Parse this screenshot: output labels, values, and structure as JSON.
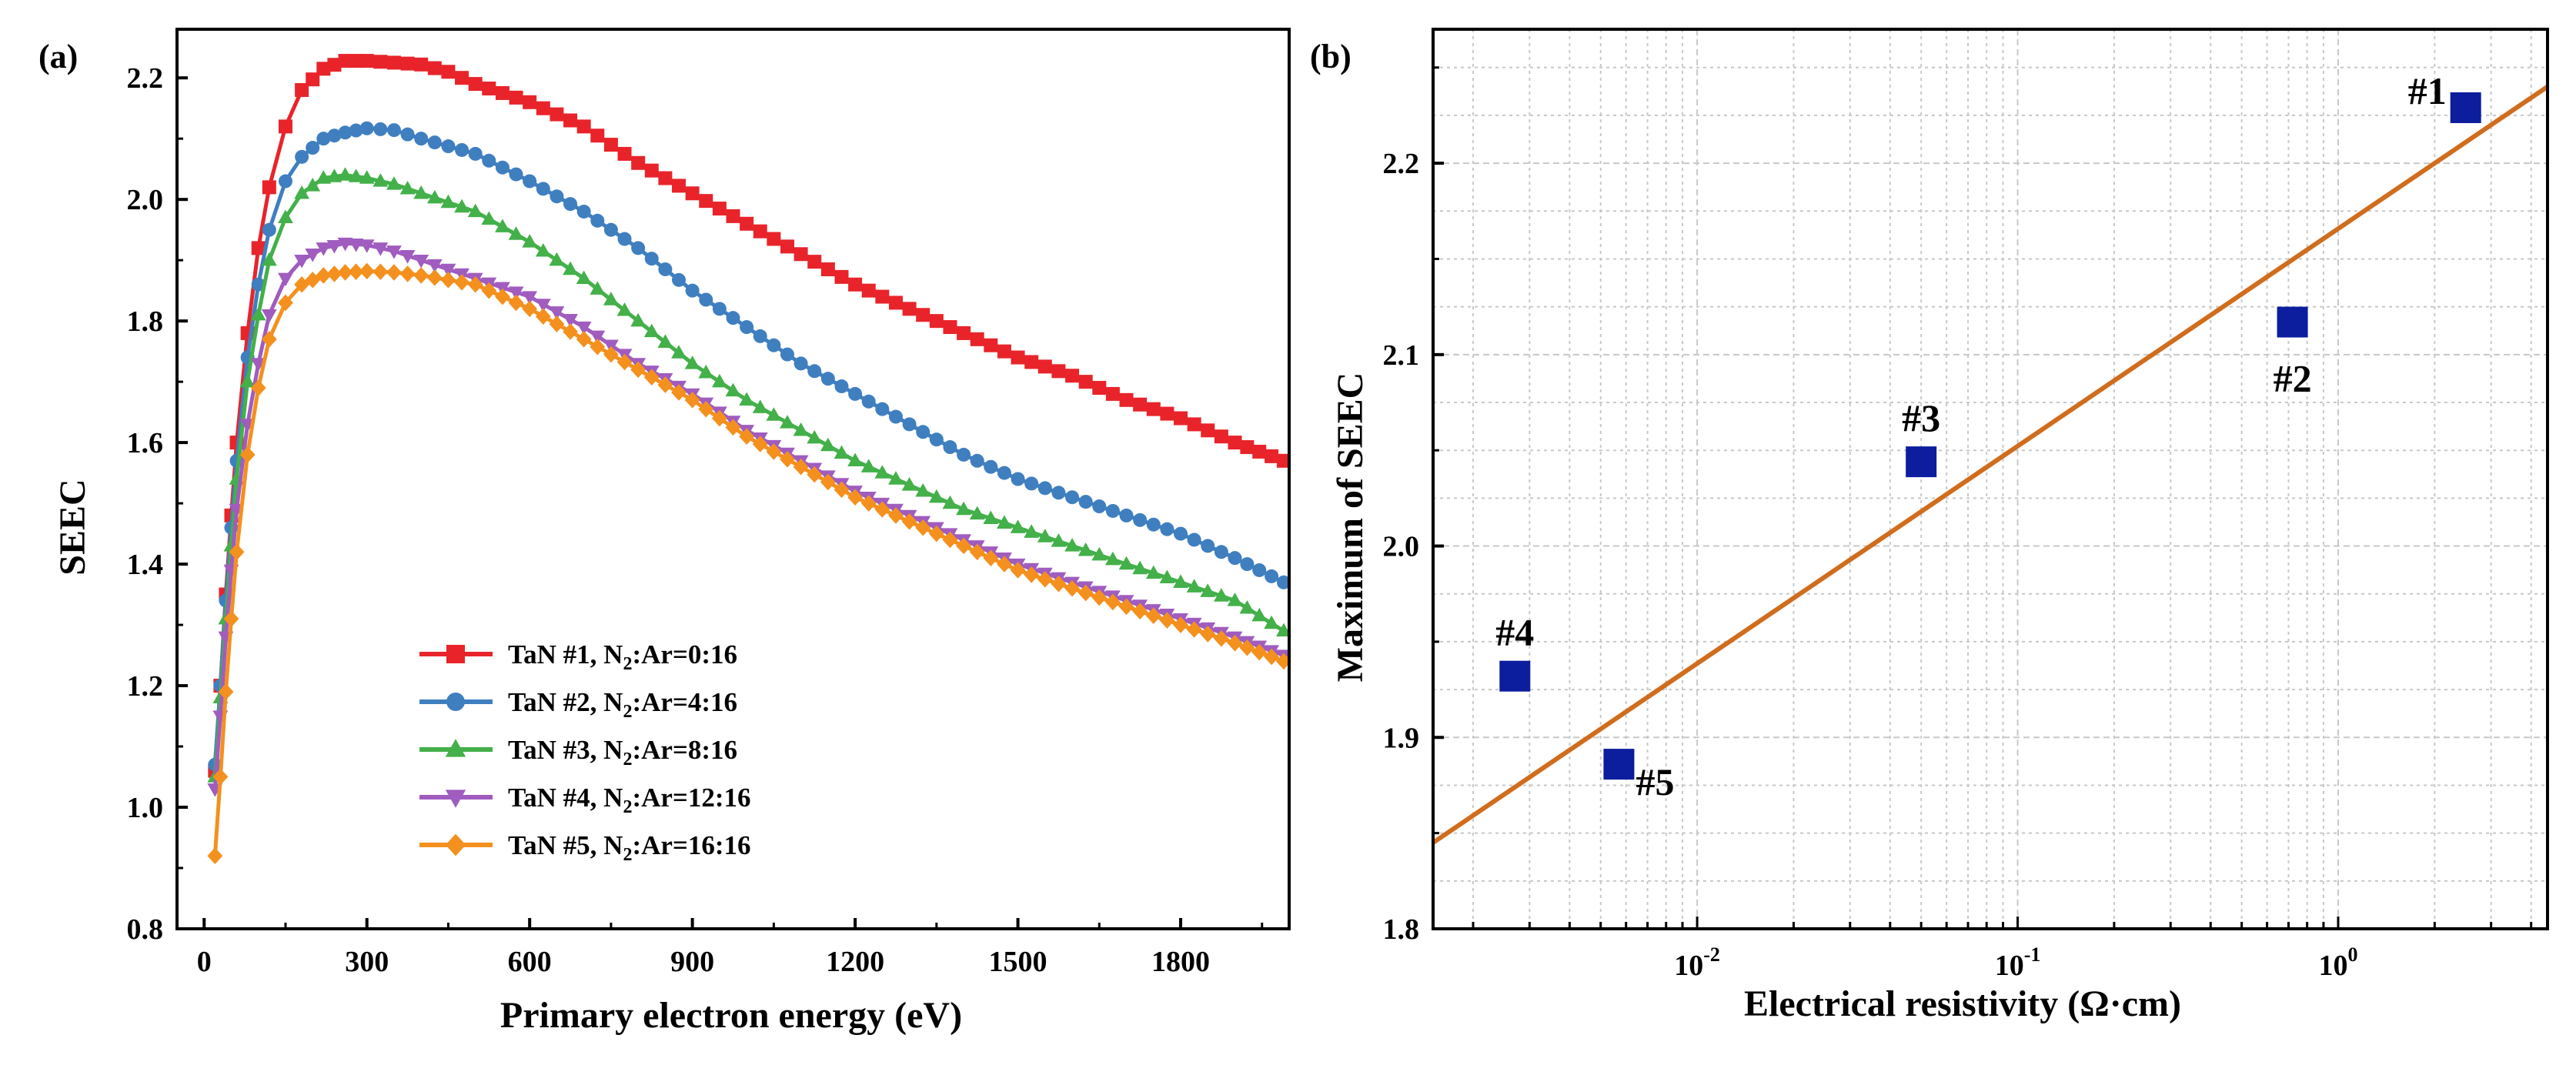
{
  "chart_data": [
    {
      "panel_label": "(a)",
      "type": "line",
      "xlabel": "Primary electron energy (eV)",
      "ylabel": "SEEC",
      "xlim": [
        -50,
        2000
      ],
      "ylim": [
        0.8,
        2.28
      ],
      "xticks": [
        "0",
        "300",
        "600",
        "900",
        "1200",
        "1500",
        "1800"
      ],
      "yticks": [
        "0.8",
        "1.0",
        "1.2",
        "1.4",
        "1.6",
        "1.8",
        "2.0",
        "2.2"
      ],
      "legend_position": "bottom-center",
      "series": [
        {
          "name": "TaN #1, N",
          "sub": "2",
          "suffix": ":Ar=0:16",
          "color": "#e8242a",
          "marker": "square",
          "points": [
            [
              20,
              1.06
            ],
            [
              30,
              1.2
            ],
            [
              40,
              1.35
            ],
            [
              50,
              1.48
            ],
            [
              60,
              1.6
            ],
            [
              80,
              1.78
            ],
            [
              100,
              1.92
            ],
            [
              120,
              2.02
            ],
            [
              150,
              2.12
            ],
            [
              180,
              2.18
            ],
            [
              220,
              2.215
            ],
            [
              260,
              2.228
            ],
            [
              300,
              2.228
            ],
            [
              350,
              2.225
            ],
            [
              400,
              2.222
            ],
            [
              450,
              2.21
            ],
            [
              500,
              2.19
            ],
            [
              600,
              2.16
            ],
            [
              700,
              2.12
            ],
            [
              800,
              2.06
            ],
            [
              900,
              2.01
            ],
            [
              1000,
              1.96
            ],
            [
              1100,
              1.91
            ],
            [
              1200,
              1.86
            ],
            [
              1300,
              1.82
            ],
            [
              1400,
              1.78
            ],
            [
              1500,
              1.74
            ],
            [
              1600,
              1.71
            ],
            [
              1700,
              1.67
            ],
            [
              1800,
              1.64
            ],
            [
              1900,
              1.6
            ],
            [
              1990,
              1.57
            ]
          ]
        },
        {
          "name": "TaN #2, N",
          "sub": "2",
          "suffix": ":Ar=4:16",
          "color": "#3f7fc0",
          "marker": "circle",
          "points": [
            [
              20,
              1.07
            ],
            [
              30,
              1.2
            ],
            [
              40,
              1.34
            ],
            [
              50,
              1.46
            ],
            [
              60,
              1.57
            ],
            [
              80,
              1.74
            ],
            [
              100,
              1.86
            ],
            [
              120,
              1.95
            ],
            [
              150,
              2.03
            ],
            [
              180,
              2.07
            ],
            [
              220,
              2.1
            ],
            [
              260,
              2.11
            ],
            [
              300,
              2.117
            ],
            [
              350,
              2.114
            ],
            [
              400,
              2.1
            ],
            [
              500,
              2.075
            ],
            [
              600,
              2.03
            ],
            [
              700,
              1.98
            ],
            [
              800,
              1.92
            ],
            [
              900,
              1.85
            ],
            [
              1000,
              1.79
            ],
            [
              1100,
              1.73
            ],
            [
              1200,
              1.68
            ],
            [
              1300,
              1.63
            ],
            [
              1400,
              1.58
            ],
            [
              1500,
              1.54
            ],
            [
              1600,
              1.51
            ],
            [
              1700,
              1.48
            ],
            [
              1800,
              1.45
            ],
            [
              1900,
              1.41
            ],
            [
              1990,
              1.37
            ]
          ]
        },
        {
          "name": "TaN #3, N",
          "sub": "2",
          "suffix": ":Ar=8:16",
          "color": "#43b049",
          "marker": "triangle-up",
          "points": [
            [
              20,
              1.05
            ],
            [
              30,
              1.18
            ],
            [
              40,
              1.31
            ],
            [
              50,
              1.43
            ],
            [
              60,
              1.54
            ],
            [
              80,
              1.7
            ],
            [
              100,
              1.81
            ],
            [
              120,
              1.9
            ],
            [
              150,
              1.97
            ],
            [
              180,
              2.01
            ],
            [
              220,
              2.035
            ],
            [
              260,
              2.04
            ],
            [
              300,
              2.035
            ],
            [
              350,
              2.025
            ],
            [
              400,
              2.01
            ],
            [
              500,
              1.98
            ],
            [
              600,
              1.93
            ],
            [
              700,
              1.87
            ],
            [
              800,
              1.8
            ],
            [
              900,
              1.73
            ],
            [
              1000,
              1.67
            ],
            [
              1100,
              1.62
            ],
            [
              1200,
              1.57
            ],
            [
              1300,
              1.53
            ],
            [
              1400,
              1.49
            ],
            [
              1500,
              1.46
            ],
            [
              1600,
              1.43
            ],
            [
              1700,
              1.4
            ],
            [
              1800,
              1.37
            ],
            [
              1900,
              1.34
            ],
            [
              1990,
              1.29
            ]
          ]
        },
        {
          "name": "TaN #4, N",
          "sub": "2",
          "suffix": ":Ar=12:16",
          "color": "#a05cbf",
          "marker": "triangle-down",
          "points": [
            [
              20,
              1.03
            ],
            [
              30,
              1.15
            ],
            [
              40,
              1.28
            ],
            [
              50,
              1.39
            ],
            [
              60,
              1.49
            ],
            [
              80,
              1.63
            ],
            [
              100,
              1.73
            ],
            [
              120,
              1.81
            ],
            [
              150,
              1.87
            ],
            [
              180,
              1.9
            ],
            [
              220,
              1.92
            ],
            [
              260,
              1.928
            ],
            [
              300,
              1.925
            ],
            [
              350,
              1.915
            ],
            [
              400,
              1.9
            ],
            [
              500,
              1.87
            ],
            [
              600,
              1.84
            ],
            [
              700,
              1.79
            ],
            [
              800,
              1.73
            ],
            [
              900,
              1.68
            ],
            [
              1000,
              1.62
            ],
            [
              1100,
              1.57
            ],
            [
              1200,
              1.52
            ],
            [
              1300,
              1.48
            ],
            [
              1400,
              1.44
            ],
            [
              1500,
              1.4
            ],
            [
              1600,
              1.37
            ],
            [
              1700,
              1.34
            ],
            [
              1800,
              1.31
            ],
            [
              1900,
              1.28
            ],
            [
              1990,
              1.25
            ]
          ]
        },
        {
          "name": "TaN #5, N",
          "sub": "2",
          "suffix": ":Ar=16:16",
          "color": "#f4901e",
          "marker": "diamond",
          "points": [
            [
              20,
              0.92
            ],
            [
              30,
              1.05
            ],
            [
              40,
              1.19
            ],
            [
              50,
              1.31
            ],
            [
              60,
              1.42
            ],
            [
              80,
              1.58
            ],
            [
              100,
              1.69
            ],
            [
              120,
              1.77
            ],
            [
              150,
              1.83
            ],
            [
              180,
              1.86
            ],
            [
              220,
              1.875
            ],
            [
              260,
              1.88
            ],
            [
              300,
              1.882
            ],
            [
              350,
              1.88
            ],
            [
              400,
              1.875
            ],
            [
              500,
              1.86
            ],
            [
              600,
              1.82
            ],
            [
              700,
              1.77
            ],
            [
              800,
              1.72
            ],
            [
              900,
              1.67
            ],
            [
              1000,
              1.61
            ],
            [
              1100,
              1.56
            ],
            [
              1200,
              1.51
            ],
            [
              1300,
              1.47
            ],
            [
              1400,
              1.43
            ],
            [
              1500,
              1.39
            ],
            [
              1600,
              1.36
            ],
            [
              1700,
              1.33
            ],
            [
              1800,
              1.3
            ],
            [
              1900,
              1.27
            ],
            [
              1990,
              1.24
            ]
          ]
        }
      ]
    },
    {
      "panel_label": "(b)",
      "type": "scatter",
      "xscale": "log",
      "xlabel": "Electrical resistivity (Ω·cm)",
      "ylabel": "Maximum of SEEC",
      "xlim": [
        0.0015,
        4.5
      ],
      "ylim": [
        1.8,
        2.27
      ],
      "xticks": [
        {
          "base": "10",
          "exp": "-2",
          "value": 0.01
        },
        {
          "base": "10",
          "exp": "-1",
          "value": 0.1
        },
        {
          "base": "10",
          "exp": "0",
          "value": 1
        }
      ],
      "yticks": [
        "1.8",
        "1.9",
        "2.0",
        "2.1",
        "2.2"
      ],
      "grid": true,
      "marker_color": "#0c1d9e",
      "fit_color": "#d06d1d",
      "fit_line": {
        "x": [
          0.0015,
          4.5
        ],
        "y": [
          1.845,
          2.24
        ]
      },
      "points": [
        {
          "label": "#1",
          "x": 2.5,
          "y": 2.229,
          "label_pos": "left"
        },
        {
          "label": "#2",
          "x": 0.72,
          "y": 2.117,
          "label_pos": "below"
        },
        {
          "label": "#3",
          "x": 0.05,
          "y": 2.044,
          "label_pos": "above"
        },
        {
          "label": "#4",
          "x": 0.0027,
          "y": 1.932,
          "label_pos": "above"
        },
        {
          "label": "#5",
          "x": 0.0057,
          "y": 1.886,
          "label_pos": "right"
        }
      ]
    }
  ]
}
